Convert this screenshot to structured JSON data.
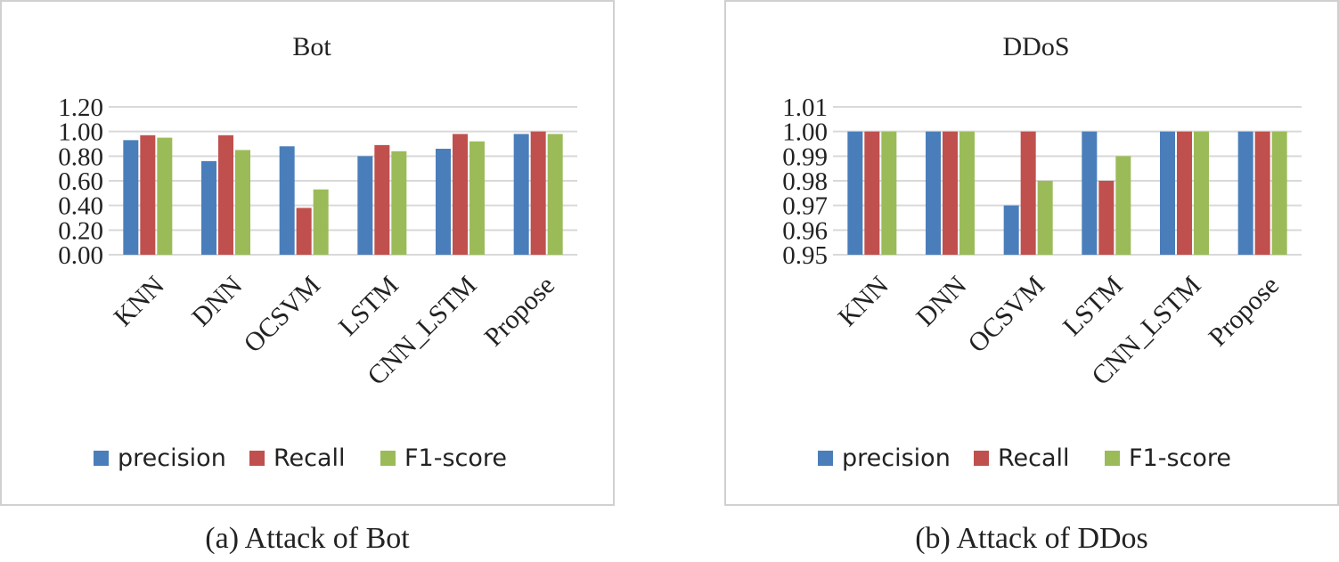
{
  "chart_data": [
    {
      "type": "bar",
      "title": "Bot",
      "categories": [
        "KNN",
        "DNN",
        "OCSVM",
        "LSTM",
        "CNN_LSTM",
        "Propose"
      ],
      "series": [
        {
          "name": "precision",
          "values": [
            0.93,
            0.76,
            0.88,
            0.8,
            0.86,
            0.98
          ]
        },
        {
          "name": "Recall",
          "values": [
            0.97,
            0.97,
            0.38,
            0.89,
            0.98,
            1.0
          ]
        },
        {
          "name": "F1-score",
          "values": [
            0.95,
            0.85,
            0.53,
            0.84,
            0.92,
            0.98
          ]
        }
      ],
      "ylim": [
        0,
        1.2
      ],
      "yticks": [
        "0.00",
        "0.20",
        "0.40",
        "0.60",
        "0.80",
        "1.00",
        "1.20"
      ],
      "xlabel": "",
      "ylabel": "",
      "legend": "bottom",
      "caption": "(a) Attack of Bot"
    },
    {
      "type": "bar",
      "title": "DDoS",
      "categories": [
        "KNN",
        "DNN",
        "OCSVM",
        "LSTM",
        "CNN_LSTM",
        "Propose"
      ],
      "series": [
        {
          "name": "precision",
          "values": [
            1.0,
            1.0,
            0.97,
            1.0,
            1.0,
            1.0
          ]
        },
        {
          "name": "Recall",
          "values": [
            1.0,
            1.0,
            1.0,
            0.98,
            1.0,
            1.0
          ]
        },
        {
          "name": "F1-score",
          "values": [
            1.0,
            1.0,
            0.98,
            0.99,
            1.0,
            1.0
          ]
        }
      ],
      "ylim": [
        0.95,
        1.01
      ],
      "yticks": [
        "0.95",
        "0.96",
        "0.97",
        "0.98",
        "0.99",
        "1.00",
        "1.01"
      ],
      "xlabel": "",
      "ylabel": "",
      "legend": "bottom",
      "caption": "(b) Attack of DDos"
    }
  ],
  "colors": {
    "precision": "#4a7ebb",
    "Recall": "#c0504d",
    "F1-score": "#9bbb59",
    "grid": "#d9d9d9",
    "border": "#d0d0d0",
    "text": "#222222"
  }
}
